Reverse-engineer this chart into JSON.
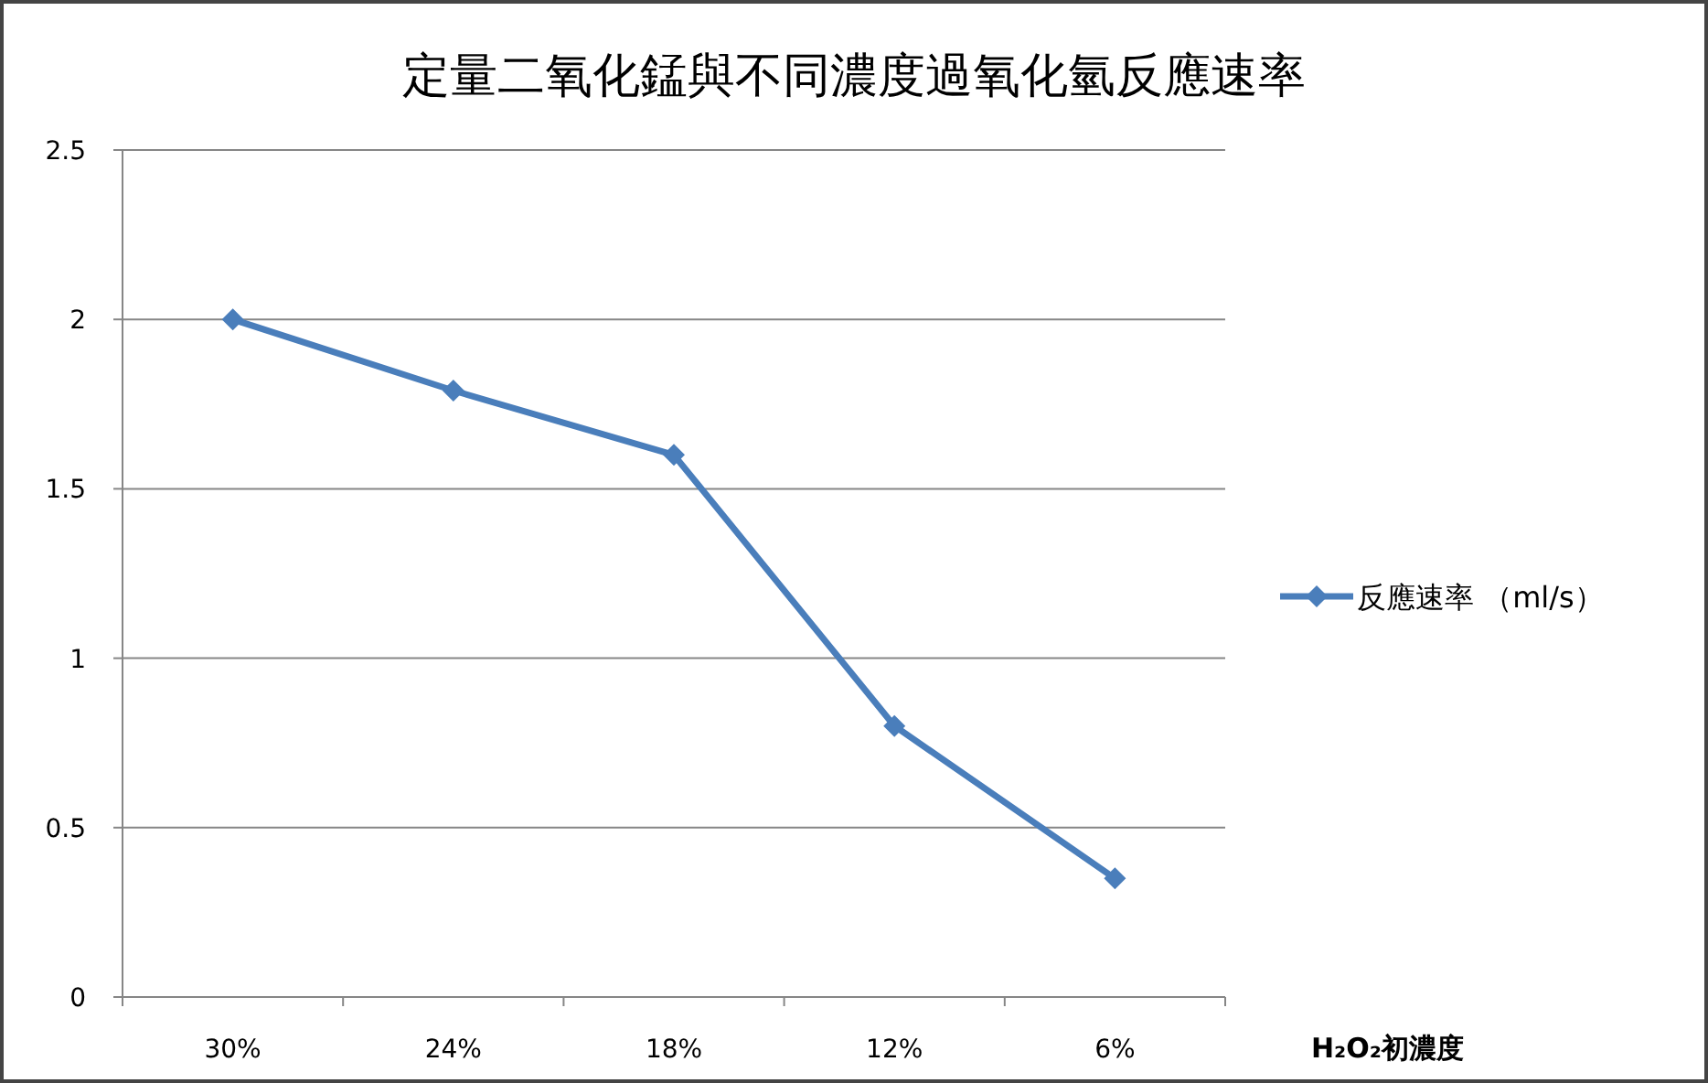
{
  "chart_data": {
    "type": "line",
    "title": "定量二氧化錳與不同濃度過氧化氫反應速率",
    "xlabel": "H₂O₂初濃度",
    "categories": [
      "30%",
      "24%",
      "18%",
      "12%",
      "6%"
    ],
    "series": [
      {
        "name": "反應速率 （ml/s）",
        "color": "#4a7ebb",
        "values": [
          2.0,
          1.79,
          1.6,
          0.8,
          0.35
        ]
      }
    ],
    "ylim": [
      0,
      2.5
    ],
    "yticks": [
      0,
      0.5,
      1,
      1.5,
      2,
      2.5
    ],
    "grid": "y",
    "legend": "right",
    "marker": "diamond",
    "line_style": "solid"
  }
}
